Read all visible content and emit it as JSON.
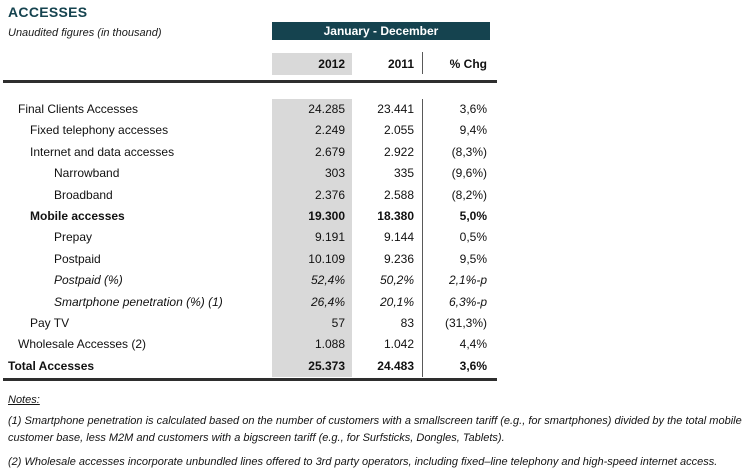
{
  "header": {
    "title": "ACCESSES",
    "subtitle": "Unaudited figures (in thousand)",
    "period": "January - December"
  },
  "columns": {
    "c2012": "2012",
    "c2011": "2011",
    "chg": "% Chg"
  },
  "table": {
    "rows": [
      {
        "label": "Final Clients Accesses",
        "v2012": "24.285",
        "v2011": "23.441",
        "chg": "3,6%",
        "indent": 1,
        "style": "normal"
      },
      {
        "label": "Fixed telephony accesses",
        "v2012": "2.249",
        "v2011": "2.055",
        "chg": "9,4%",
        "indent": 2,
        "style": "normal"
      },
      {
        "label": "Internet and data accesses",
        "v2012": "2.679",
        "v2011": "2.922",
        "chg": "(8,3%)",
        "indent": 2,
        "style": "normal"
      },
      {
        "label": "Narrowband",
        "v2012": "303",
        "v2011": "335",
        "chg": "(9,6%)",
        "indent": 3,
        "style": "normal"
      },
      {
        "label": "Broadband",
        "v2012": "2.376",
        "v2011": "2.588",
        "chg": "(8,2%)",
        "indent": 3,
        "style": "normal"
      },
      {
        "label": "Mobile accesses",
        "v2012": "19.300",
        "v2011": "18.380",
        "chg": "5,0%",
        "indent": 2,
        "style": "bold"
      },
      {
        "label": "Prepay",
        "v2012": "9.191",
        "v2011": "9.144",
        "chg": "0,5%",
        "indent": 3,
        "style": "normal"
      },
      {
        "label": "Postpaid",
        "v2012": "10.109",
        "v2011": "9.236",
        "chg": "9,5%",
        "indent": 3,
        "style": "normal"
      },
      {
        "label": "Postpaid (%)",
        "v2012": "52,4%",
        "v2011": "50,2%",
        "chg": "2,1%-p",
        "indent": 3,
        "style": "italic"
      },
      {
        "label": "Smartphone penetration (%) (1)",
        "v2012": "26,4%",
        "v2011": "20,1%",
        "chg": "6,3%-p",
        "indent": 3,
        "style": "italic"
      },
      {
        "label": "Pay TV",
        "v2012": "57",
        "v2011": "83",
        "chg": "(31,3%)",
        "indent": 2,
        "style": "normal"
      },
      {
        "label": "Wholesale Accesses (2)",
        "v2012": "1.088",
        "v2011": "1.042",
        "chg": "4,4%",
        "indent": 1,
        "style": "normal"
      },
      {
        "label": "Total Accesses",
        "v2012": "25.373",
        "v2011": "24.483",
        "chg": "3,6%",
        "indent": 0,
        "style": "bold"
      }
    ]
  },
  "notes": {
    "heading": "Notes:",
    "note1": "(1) Smartphone penetration is calculated based on the number of customers with a smallscreen tariff (e.g., for smartphones) divided by the total mobile customer base, less M2M and customers with a bigscreen tariff (e.g., for Surfsticks, Dongles, Tablets).",
    "note2": "(2) Wholesale accesses incorporate unbundled lines offered to 3rd party operators, including fixed–line telephony and high-speed internet access."
  },
  "colors": {
    "accent_teal": "#15434f",
    "highlight_gray": "#d9d9d9",
    "rule_dark": "#2e2e2e"
  }
}
